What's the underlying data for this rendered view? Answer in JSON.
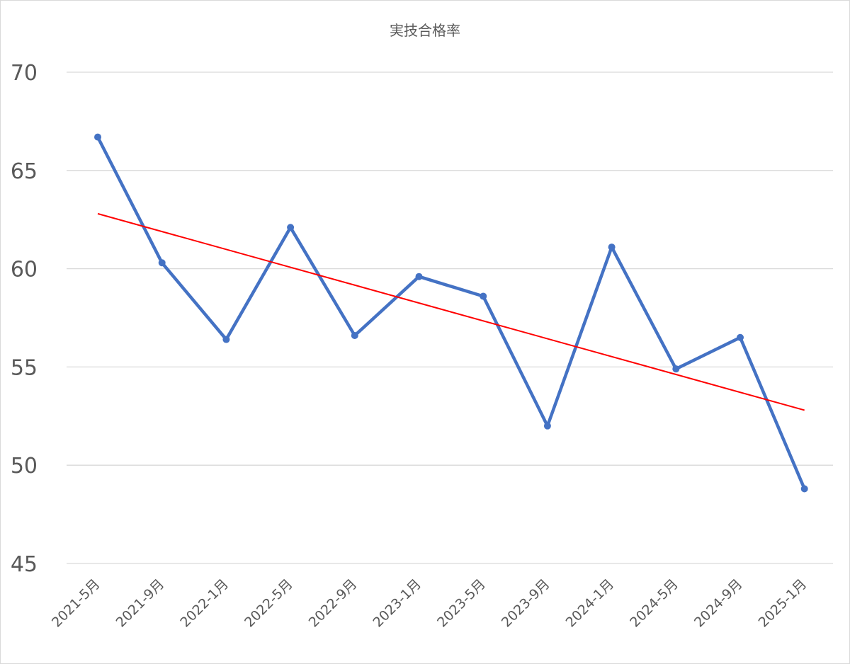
{
  "chart_data": {
    "type": "line",
    "title": "実技合格率",
    "categories": [
      "2021-5月",
      "2021-9月",
      "2022-1月",
      "2022-5月",
      "2022-9月",
      "2023-1月",
      "2023-5月",
      "2023-9月",
      "2024-1月",
      "2024-5月",
      "2024-9月",
      "2025-1月"
    ],
    "series": [
      {
        "values": [
          66.7,
          60.3,
          56.4,
          62.1,
          56.6,
          59.6,
          58.6,
          52.0,
          61.1,
          54.9,
          56.5,
          48.8
        ],
        "color": "#4472c4",
        "markers": true
      }
    ],
    "trendline": {
      "type": "linear",
      "color": "#ff0000",
      "start": 62.8,
      "end": 52.8
    },
    "yticks": [
      "70",
      "65",
      "60",
      "55",
      "50",
      "45"
    ],
    "ylim": [
      45,
      70
    ],
    "grid": true,
    "legend": "none"
  }
}
